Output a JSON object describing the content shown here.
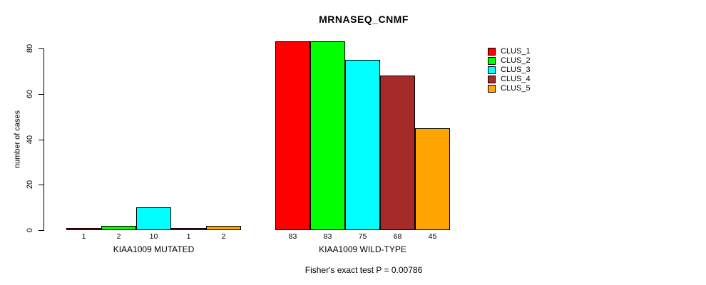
{
  "chart_data": {
    "type": "bar",
    "title": "MRNASEQ_CNMF",
    "ylabel": "number of cases",
    "ylim": [
      0,
      80
    ],
    "yticks": [
      0,
      20,
      40,
      60,
      80
    ],
    "grid": false,
    "legend_position": "right-outside",
    "legend": [
      {
        "label": "CLUS_1",
        "color": "#FF0000"
      },
      {
        "label": "CLUS_2",
        "color": "#00FF00"
      },
      {
        "label": "CLUS_3",
        "color": "#00FFFF"
      },
      {
        "label": "CLUS_4",
        "color": "#A52A2A"
      },
      {
        "label": "CLUS_5",
        "color": "#FFA500"
      }
    ],
    "groups": [
      {
        "label": "KIAA1009 MUTATED",
        "values": [
          1,
          2,
          10,
          1,
          2
        ]
      },
      {
        "label": "KIAA1009 WILD-TYPE",
        "values": [
          83,
          83,
          75,
          68,
          45
        ]
      }
    ],
    "footnote": "Fisher's exact test P = 0.00786"
  }
}
